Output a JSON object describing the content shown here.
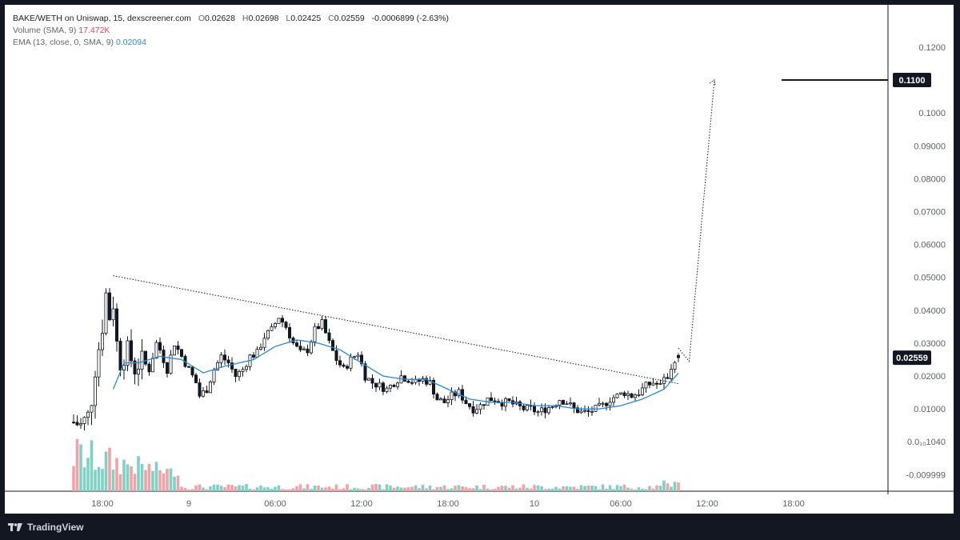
{
  "legend": {
    "symbol": "BAKE/WETH on Uniswap, 15, dexscreener.com",
    "o_label": "O",
    "o": "0.02628",
    "h_label": "H",
    "h": "0.02698",
    "l_label": "L",
    "l": "0.02425",
    "c_label": "C",
    "c": "0.02559",
    "change": "-0.0006899 (-2.63%)",
    "volume_label": "Volume (SMA, 9)",
    "volume_value": "17.472K",
    "ema_label": "EMA (13, close, 0, SMA, 9)",
    "ema_value": "0.02094"
  },
  "footer": {
    "brand": "TradingView"
  },
  "colors": {
    "up": "#ffffff",
    "down": "#131722",
    "candle_border": "#131722",
    "ema": "#2a8ad4",
    "vol_up": "#7fd1c3",
    "vol_down": "#f2a1a6",
    "axis_text": "#5d606b",
    "target_box": "#131722"
  },
  "chart_data": {
    "type": "candlestick",
    "y_axis": {
      "range": [
        -0.015,
        0.128
      ],
      "ticks": [
        {
          "value": 0.12,
          "label": "0.1200"
        },
        {
          "value": 0.1,
          "label": "0.1000"
        },
        {
          "value": 0.09,
          "label": "0.09000"
        },
        {
          "value": 0.08,
          "label": "0.08000"
        },
        {
          "value": 0.07,
          "label": "0.07000"
        },
        {
          "value": 0.06,
          "label": "0.06000"
        },
        {
          "value": 0.05,
          "label": "0.05000"
        },
        {
          "value": 0.04,
          "label": "0.04000"
        },
        {
          "value": 0.03,
          "label": "0.03000"
        },
        {
          "value": 0.02,
          "label": "0.02000"
        },
        {
          "value": 0.01,
          "label": "0.01000"
        },
        {
          "value": 0.0001,
          "label": "0.0₁₀1040"
        },
        {
          "value": -0.01,
          "label": "-0.009999"
        }
      ],
      "price_badges": [
        {
          "value": 0.11,
          "label": "0.1100"
        },
        {
          "value": 0.02559,
          "label": "0.02559"
        }
      ]
    },
    "x_axis": {
      "ticks": [
        {
          "index": 8,
          "label": "18:00"
        },
        {
          "index": 32,
          "label": "9"
        },
        {
          "index": 56,
          "label": "06:00"
        },
        {
          "index": 80,
          "label": "12:00"
        },
        {
          "index": 104,
          "label": "18:00"
        },
        {
          "index": 128,
          "label": "10"
        },
        {
          "index": 152,
          "label": "06:00"
        },
        {
          "index": 176,
          "label": "12:00"
        },
        {
          "index": 200,
          "label": "18:00"
        }
      ]
    },
    "keypoints": [
      [
        0,
        0.006
      ],
      [
        2,
        0.005
      ],
      [
        4,
        0.008
      ],
      [
        5,
        0.013
      ],
      [
        6,
        0.022
      ],
      [
        8,
        0.035
      ],
      [
        9,
        0.045
      ],
      [
        10,
        0.038
      ],
      [
        11,
        0.042
      ],
      [
        12,
        0.03
      ],
      [
        13,
        0.024
      ],
      [
        15,
        0.028
      ],
      [
        17,
        0.022
      ],
      [
        19,
        0.025
      ],
      [
        21,
        0.022
      ],
      [
        23,
        0.03
      ],
      [
        24,
        0.028
      ],
      [
        26,
        0.022
      ],
      [
        28,
        0.03
      ],
      [
        30,
        0.026
      ],
      [
        32,
        0.022
      ],
      [
        34,
        0.018
      ],
      [
        35,
        0.014
      ],
      [
        37,
        0.016
      ],
      [
        39,
        0.022
      ],
      [
        41,
        0.026
      ],
      [
        43,
        0.024
      ],
      [
        45,
        0.02
      ],
      [
        47,
        0.022
      ],
      [
        49,
        0.026
      ],
      [
        51,
        0.027
      ],
      [
        53,
        0.032
      ],
      [
        55,
        0.034
      ],
      [
        57,
        0.038
      ],
      [
        59,
        0.035
      ],
      [
        61,
        0.03
      ],
      [
        63,
        0.027
      ],
      [
        65,
        0.028
      ],
      [
        67,
        0.034
      ],
      [
        69,
        0.036
      ],
      [
        71,
        0.03
      ],
      [
        73,
        0.025
      ],
      [
        75,
        0.022
      ],
      [
        77,
        0.025
      ],
      [
        79,
        0.027
      ],
      [
        81,
        0.02
      ],
      [
        83,
        0.018
      ],
      [
        85,
        0.017
      ],
      [
        87,
        0.016
      ],
      [
        89,
        0.018
      ],
      [
        91,
        0.02
      ],
      [
        93,
        0.019
      ],
      [
        95,
        0.018
      ],
      [
        97,
        0.019
      ],
      [
        99,
        0.018
      ],
      [
        101,
        0.013
      ],
      [
        103,
        0.012
      ],
      [
        105,
        0.014
      ],
      [
        107,
        0.015
      ],
      [
        109,
        0.012
      ],
      [
        111,
        0.01
      ],
      [
        113,
        0.011
      ],
      [
        115,
        0.013
      ],
      [
        117,
        0.013
      ],
      [
        119,
        0.012
      ],
      [
        121,
        0.012
      ],
      [
        123,
        0.011
      ],
      [
        125,
        0.01
      ],
      [
        127,
        0.01
      ],
      [
        129,
        0.009
      ],
      [
        131,
        0.01
      ],
      [
        133,
        0.011
      ],
      [
        135,
        0.013
      ],
      [
        137,
        0.012
      ],
      [
        139,
        0.01
      ],
      [
        141,
        0.009
      ],
      [
        143,
        0.009
      ],
      [
        145,
        0.01
      ],
      [
        147,
        0.011
      ],
      [
        149,
        0.013
      ],
      [
        151,
        0.014
      ],
      [
        153,
        0.015
      ],
      [
        155,
        0.014
      ],
      [
        157,
        0.015
      ],
      [
        159,
        0.017
      ],
      [
        161,
        0.018
      ],
      [
        163,
        0.017
      ],
      [
        165,
        0.02
      ],
      [
        167,
        0.025
      ],
      [
        168,
        0.0256
      ]
    ],
    "ema_keypoints": [
      [
        11,
        0.016
      ],
      [
        14,
        0.024
      ],
      [
        18,
        0.024
      ],
      [
        24,
        0.026
      ],
      [
        30,
        0.025
      ],
      [
        36,
        0.021
      ],
      [
        42,
        0.023
      ],
      [
        50,
        0.025
      ],
      [
        56,
        0.029
      ],
      [
        62,
        0.031
      ],
      [
        68,
        0.03
      ],
      [
        74,
        0.028
      ],
      [
        80,
        0.024
      ],
      [
        86,
        0.02
      ],
      [
        92,
        0.019
      ],
      [
        98,
        0.019
      ],
      [
        104,
        0.016
      ],
      [
        110,
        0.013
      ],
      [
        116,
        0.012
      ],
      [
        122,
        0.012
      ],
      [
        128,
        0.011
      ],
      [
        134,
        0.011
      ],
      [
        140,
        0.01
      ],
      [
        146,
        0.01
      ],
      [
        152,
        0.011
      ],
      [
        158,
        0.013
      ],
      [
        164,
        0.016
      ],
      [
        168,
        0.0209
      ]
    ],
    "trendline": [
      [
        11,
        0.0505
      ],
      [
        168,
        0.0177
      ]
    ],
    "projection": [
      [
        168,
        0.0285
      ],
      [
        171,
        0.0245
      ],
      [
        178,
        0.11
      ]
    ],
    "target_level": 0.11
  }
}
